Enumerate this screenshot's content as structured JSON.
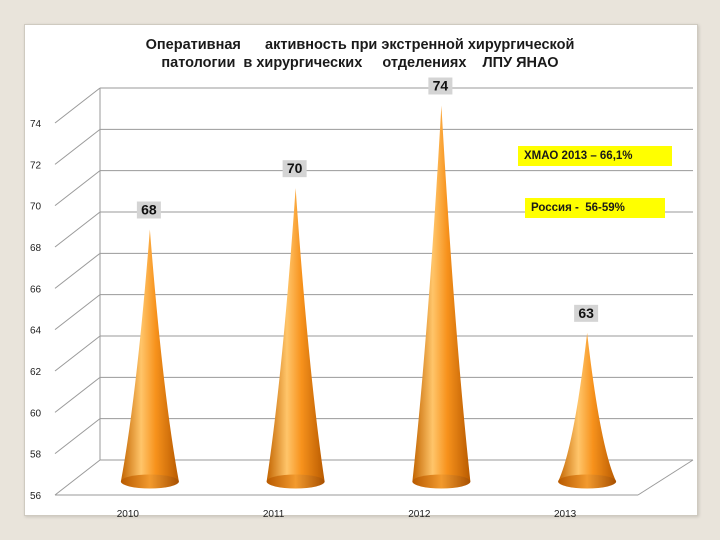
{
  "title_lines": [
    "Оперативная      активность при экстренной хирургической",
    "патологии  в хирургических     отделениях    ЛПУ ЯНАО"
  ],
  "annotations": [
    "ХМАО 2013 – 66,1%",
    "Россия -  56-59%"
  ],
  "colors": {
    "cone_light": "#ffc56a",
    "cone_mid": "#f7921c",
    "cone_dark": "#b85a00",
    "annotation_bg": "#ffff00",
    "grid": "#9a9a9a",
    "label_bg": "#d4d4d4"
  },
  "chart_data": {
    "type": "bar",
    "bar_shape": "3d-cone",
    "title": "Оперативная активность при экстренной хирургической патологии в хирургических отделениях ЛПУ ЯНАО",
    "categories": [
      "2010",
      "2011",
      "2012",
      "2013"
    ],
    "values": [
      68,
      70,
      74,
      63
    ],
    "data_labels": [
      "68",
      "70",
      "74",
      "63"
    ],
    "ylim": [
      56,
      74
    ],
    "yticks": [
      56,
      58,
      60,
      62,
      64,
      66,
      68,
      70,
      72,
      74
    ],
    "ytick_labels": [
      "56",
      "58",
      "60",
      "62",
      "64",
      "66",
      "68",
      "70",
      "72",
      "74"
    ],
    "xlabel": "",
    "ylabel": "",
    "grid": true,
    "legend": "none"
  }
}
